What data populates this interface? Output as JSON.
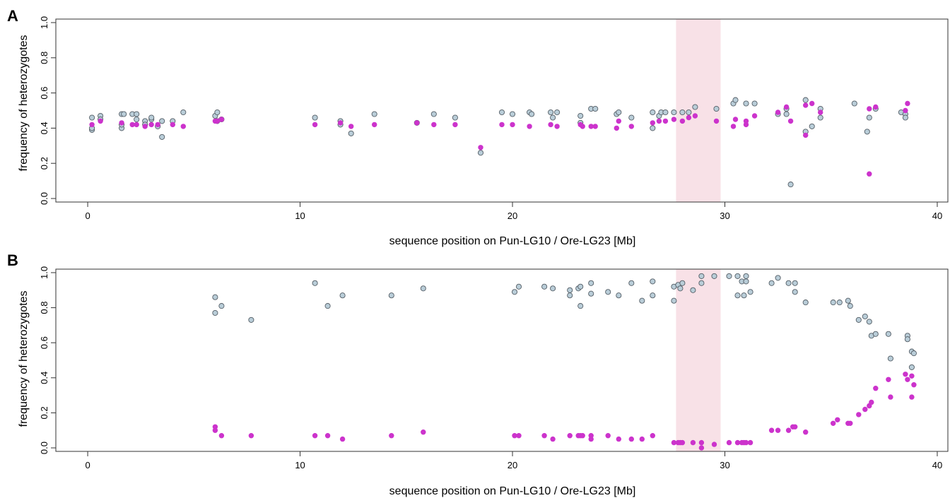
{
  "chart_data": [
    {
      "type": "scatter",
      "panel_label": "A",
      "title": "",
      "xlabel": "sequence position on Pun-LG10 / Ore-LG23 [Mb]",
      "ylabel": "frequency of heterozygotes",
      "xlim": [
        -1.5,
        40.5
      ],
      "ylim": [
        -0.02,
        1.02
      ],
      "x_ticks": [
        0,
        10,
        20,
        30,
        40
      ],
      "y_ticks": [
        0.0,
        0.2,
        0.4,
        0.6,
        0.8,
        1.0
      ],
      "y_tick_labels": [
        "0.0",
        "0.2",
        "0.4",
        "0.6",
        "0.8",
        "1.0"
      ],
      "highlight_region": [
        27.7,
        29.8
      ],
      "colors": {
        "series_a": "#b9cdd8",
        "series_a_edge": "#555e66",
        "series_b": "#cc33cc",
        "highlight": "#f8e1e7"
      },
      "series": [
        {
          "points": [
            [
              0.2,
              0.46
            ],
            [
              0.2,
              0.39
            ],
            [
              0.2,
              0.4
            ],
            [
              0.6,
              0.47
            ],
            [
              0.6,
              0.45
            ],
            [
              1.6,
              0.48
            ],
            [
              1.6,
              0.4
            ],
            [
              1.6,
              0.42
            ],
            [
              1.7,
              0.48
            ],
            [
              2.1,
              0.48
            ],
            [
              2.3,
              0.48
            ],
            [
              2.3,
              0.45
            ],
            [
              2.7,
              0.44
            ],
            [
              2.7,
              0.42
            ],
            [
              3.0,
              0.45
            ],
            [
              3.0,
              0.46
            ],
            [
              3.3,
              0.41
            ],
            [
              3.5,
              0.44
            ],
            [
              3.5,
              0.35
            ],
            [
              4.0,
              0.44
            ],
            [
              4.5,
              0.49
            ],
            [
              6.0,
              0.47
            ],
            [
              6.1,
              0.49
            ],
            [
              6.1,
              0.44
            ],
            [
              6.3,
              0.45
            ],
            [
              10.7,
              0.46
            ],
            [
              11.9,
              0.44
            ],
            [
              11.9,
              0.42
            ],
            [
              12.4,
              0.37
            ],
            [
              13.5,
              0.48
            ],
            [
              15.5,
              0.43
            ],
            [
              16.3,
              0.48
            ],
            [
              17.3,
              0.46
            ],
            [
              18.5,
              0.26
            ],
            [
              19.5,
              0.49
            ],
            [
              20.0,
              0.48
            ],
            [
              20.8,
              0.49
            ],
            [
              20.9,
              0.48
            ],
            [
              21.8,
              0.49
            ],
            [
              21.9,
              0.46
            ],
            [
              22.1,
              0.49
            ],
            [
              23.2,
              0.47
            ],
            [
              23.2,
              0.43
            ],
            [
              23.7,
              0.51
            ],
            [
              23.9,
              0.51
            ],
            [
              24.9,
              0.48
            ],
            [
              25.0,
              0.49
            ],
            [
              25.6,
              0.46
            ],
            [
              26.6,
              0.49
            ],
            [
              26.6,
              0.4
            ],
            [
              26.9,
              0.47
            ],
            [
              27.0,
              0.49
            ],
            [
              27.2,
              0.49
            ],
            [
              27.6,
              0.49
            ],
            [
              28.0,
              0.49
            ],
            [
              28.3,
              0.49
            ],
            [
              28.6,
              0.52
            ],
            [
              29.6,
              0.51
            ],
            [
              30.4,
              0.54
            ],
            [
              30.5,
              0.56
            ],
            [
              31.0,
              0.54
            ],
            [
              31.4,
              0.54
            ],
            [
              32.5,
              0.48
            ],
            [
              32.9,
              0.51
            ],
            [
              32.9,
              0.48
            ],
            [
              33.1,
              0.08
            ],
            [
              33.8,
              0.56
            ],
            [
              33.8,
              0.38
            ],
            [
              34.1,
              0.41
            ],
            [
              34.5,
              0.51
            ],
            [
              34.5,
              0.46
            ],
            [
              36.1,
              0.54
            ],
            [
              36.7,
              0.38
            ],
            [
              36.8,
              0.46
            ],
            [
              37.1,
              0.51
            ],
            [
              38.3,
              0.49
            ],
            [
              38.5,
              0.48
            ],
            [
              38.5,
              0.46
            ]
          ]
        },
        {
          "points": [
            [
              0.2,
              0.42
            ],
            [
              0.6,
              0.44
            ],
            [
              1.6,
              0.43
            ],
            [
              2.1,
              0.42
            ],
            [
              2.3,
              0.42
            ],
            [
              2.7,
              0.41
            ],
            [
              3.0,
              0.42
            ],
            [
              3.3,
              0.42
            ],
            [
              4.0,
              0.42
            ],
            [
              4.5,
              0.41
            ],
            [
              6.0,
              0.44
            ],
            [
              6.1,
              0.44
            ],
            [
              6.3,
              0.45
            ],
            [
              10.7,
              0.42
            ],
            [
              11.9,
              0.43
            ],
            [
              12.4,
              0.41
            ],
            [
              13.5,
              0.42
            ],
            [
              15.5,
              0.43
            ],
            [
              16.3,
              0.42
            ],
            [
              17.3,
              0.42
            ],
            [
              18.5,
              0.29
            ],
            [
              19.5,
              0.42
            ],
            [
              20.0,
              0.42
            ],
            [
              20.8,
              0.41
            ],
            [
              21.8,
              0.42
            ],
            [
              22.1,
              0.41
            ],
            [
              23.2,
              0.42
            ],
            [
              23.3,
              0.41
            ],
            [
              23.7,
              0.41
            ],
            [
              23.9,
              0.41
            ],
            [
              24.9,
              0.4
            ],
            [
              25.0,
              0.44
            ],
            [
              25.6,
              0.41
            ],
            [
              26.6,
              0.43
            ],
            [
              26.9,
              0.44
            ],
            [
              27.2,
              0.44
            ],
            [
              27.6,
              0.45
            ],
            [
              28.0,
              0.44
            ],
            [
              28.3,
              0.46
            ],
            [
              28.6,
              0.47
            ],
            [
              29.6,
              0.44
            ],
            [
              30.4,
              0.41
            ],
            [
              30.5,
              0.45
            ],
            [
              31.0,
              0.42
            ],
            [
              31.0,
              0.44
            ],
            [
              31.4,
              0.47
            ],
            [
              32.5,
              0.49
            ],
            [
              32.9,
              0.52
            ],
            [
              33.1,
              0.44
            ],
            [
              33.8,
              0.36
            ],
            [
              33.8,
              0.53
            ],
            [
              34.1,
              0.54
            ],
            [
              34.5,
              0.49
            ],
            [
              36.8,
              0.14
            ],
            [
              36.8,
              0.51
            ],
            [
              37.1,
              0.52
            ],
            [
              38.5,
              0.5
            ],
            [
              38.6,
              0.54
            ]
          ]
        }
      ]
    },
    {
      "type": "scatter",
      "panel_label": "B",
      "title": "",
      "xlabel": "sequence position on Pun-LG10 / Ore-LG23 [Mb]",
      "ylabel": "frequency of heterozygotes",
      "xlim": [
        -1.5,
        40.5
      ],
      "ylim": [
        -0.02,
        1.02
      ],
      "x_ticks": [
        0,
        10,
        20,
        30,
        40
      ],
      "y_ticks": [
        0.0,
        0.2,
        0.4,
        0.6,
        0.8,
        1.0
      ],
      "y_tick_labels": [
        "0.0",
        "0.2",
        "0.4",
        "0.6",
        "0.8",
        "1.0"
      ],
      "highlight_region": [
        27.7,
        29.8
      ],
      "colors": {
        "series_a": "#b9cdd8",
        "series_a_edge": "#555e66",
        "series_b": "#cc33cc",
        "highlight": "#f8e1e7"
      },
      "series": [
        {
          "points": [
            [
              6.0,
              0.86
            ],
            [
              6.0,
              0.77
            ],
            [
              6.3,
              0.81
            ],
            [
              7.7,
              0.73
            ],
            [
              10.7,
              0.94
            ],
            [
              11.3,
              0.81
            ],
            [
              12.0,
              0.87
            ],
            [
              14.3,
              0.87
            ],
            [
              15.8,
              0.91
            ],
            [
              20.1,
              0.89
            ],
            [
              20.3,
              0.92
            ],
            [
              21.5,
              0.92
            ],
            [
              21.9,
              0.91
            ],
            [
              22.7,
              0.9
            ],
            [
              22.7,
              0.87
            ],
            [
              23.1,
              0.91
            ],
            [
              23.2,
              0.92
            ],
            [
              23.2,
              0.81
            ],
            [
              23.7,
              0.94
            ],
            [
              23.7,
              0.88
            ],
            [
              24.5,
              0.89
            ],
            [
              25.0,
              0.87
            ],
            [
              25.6,
              0.94
            ],
            [
              26.1,
              0.84
            ],
            [
              26.6,
              0.95
            ],
            [
              26.6,
              0.87
            ],
            [
              27.6,
              0.84
            ],
            [
              27.6,
              0.92
            ],
            [
              27.8,
              0.93
            ],
            [
              27.9,
              0.91
            ],
            [
              28.0,
              0.94
            ],
            [
              28.5,
              0.9
            ],
            [
              28.9,
              0.98
            ],
            [
              28.9,
              0.94
            ],
            [
              29.5,
              0.98
            ],
            [
              30.2,
              0.98
            ],
            [
              30.6,
              0.98
            ],
            [
              30.6,
              0.87
            ],
            [
              30.8,
              0.95
            ],
            [
              30.9,
              0.87
            ],
            [
              31.0,
              0.98
            ],
            [
              31.0,
              0.95
            ],
            [
              31.2,
              0.89
            ],
            [
              32.2,
              0.94
            ],
            [
              32.5,
              0.97
            ],
            [
              33.0,
              0.94
            ],
            [
              33.3,
              0.94
            ],
            [
              33.3,
              0.89
            ],
            [
              33.8,
              0.83
            ],
            [
              35.1,
              0.83
            ],
            [
              35.4,
              0.83
            ],
            [
              35.8,
              0.84
            ],
            [
              35.9,
              0.81
            ],
            [
              36.3,
              0.73
            ],
            [
              36.6,
              0.75
            ],
            [
              36.8,
              0.72
            ],
            [
              36.9,
              0.64
            ],
            [
              37.1,
              0.65
            ],
            [
              37.7,
              0.65
            ],
            [
              37.8,
              0.51
            ],
            [
              38.6,
              0.64
            ],
            [
              38.6,
              0.62
            ],
            [
              38.8,
              0.55
            ],
            [
              38.8,
              0.46
            ],
            [
              38.9,
              0.54
            ]
          ]
        },
        {
          "points": [
            [
              6.0,
              0.12
            ],
            [
              6.0,
              0.1
            ],
            [
              6.3,
              0.07
            ],
            [
              7.7,
              0.07
            ],
            [
              10.7,
              0.07
            ],
            [
              11.3,
              0.07
            ],
            [
              12.0,
              0.05
            ],
            [
              14.3,
              0.07
            ],
            [
              15.8,
              0.09
            ],
            [
              20.1,
              0.07
            ],
            [
              20.3,
              0.07
            ],
            [
              21.5,
              0.07
            ],
            [
              21.9,
              0.05
            ],
            [
              22.7,
              0.07
            ],
            [
              23.1,
              0.07
            ],
            [
              23.2,
              0.07
            ],
            [
              23.3,
              0.07
            ],
            [
              23.7,
              0.07
            ],
            [
              23.7,
              0.05
            ],
            [
              24.5,
              0.07
            ],
            [
              25.0,
              0.05
            ],
            [
              25.6,
              0.05
            ],
            [
              26.1,
              0.05
            ],
            [
              26.6,
              0.07
            ],
            [
              27.6,
              0.03
            ],
            [
              27.8,
              0.03
            ],
            [
              27.9,
              0.03
            ],
            [
              28.0,
              0.03
            ],
            [
              28.5,
              0.03
            ],
            [
              28.9,
              0.03
            ],
            [
              28.9,
              0.0
            ],
            [
              29.5,
              0.02
            ],
            [
              30.2,
              0.03
            ],
            [
              30.6,
              0.03
            ],
            [
              30.8,
              0.03
            ],
            [
              30.9,
              0.03
            ],
            [
              31.0,
              0.03
            ],
            [
              31.2,
              0.03
            ],
            [
              32.2,
              0.1
            ],
            [
              32.5,
              0.1
            ],
            [
              33.0,
              0.1
            ],
            [
              33.2,
              0.12
            ],
            [
              33.3,
              0.12
            ],
            [
              33.8,
              0.09
            ],
            [
              35.1,
              0.14
            ],
            [
              35.3,
              0.16
            ],
            [
              35.8,
              0.14
            ],
            [
              35.9,
              0.14
            ],
            [
              36.3,
              0.19
            ],
            [
              36.6,
              0.22
            ],
            [
              36.8,
              0.24
            ],
            [
              36.9,
              0.26
            ],
            [
              37.1,
              0.34
            ],
            [
              37.7,
              0.39
            ],
            [
              37.8,
              0.29
            ],
            [
              38.5,
              0.42
            ],
            [
              38.6,
              0.39
            ],
            [
              38.8,
              0.41
            ],
            [
              38.8,
              0.29
            ],
            [
              38.9,
              0.36
            ]
          ]
        }
      ]
    }
  ]
}
